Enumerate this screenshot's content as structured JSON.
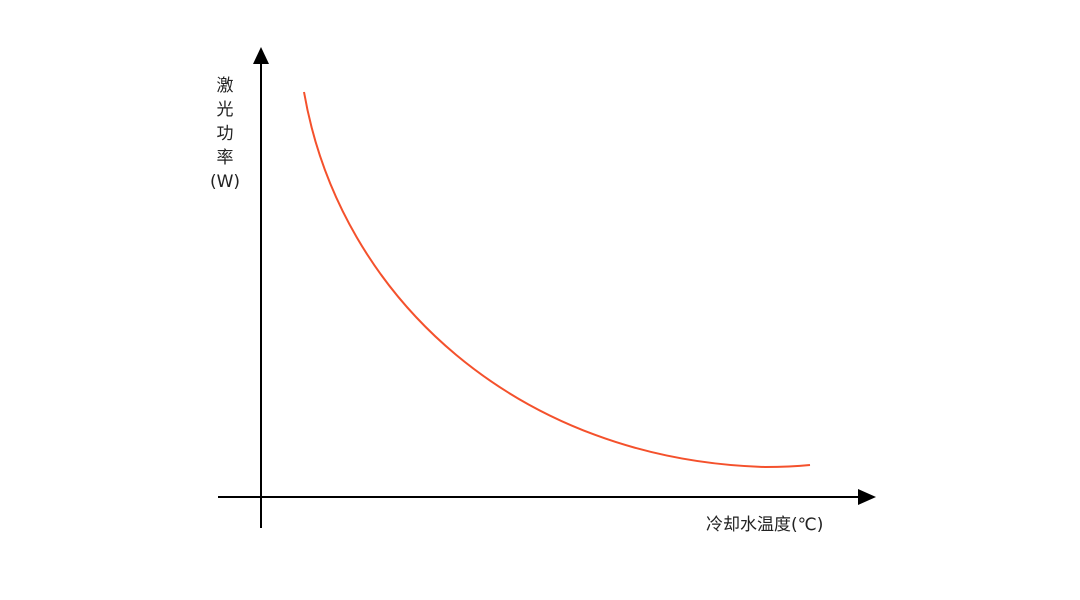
{
  "chart_data": {
    "type": "line",
    "title": "",
    "xlabel": "冷却水温度(℃)",
    "ylabel_chars": [
      "激",
      "光",
      "功",
      "率",
      "(W)"
    ],
    "trend": "decreasing, convex, levelling off at high temperature",
    "grid": false,
    "ticks": false,
    "series_color": "#f4512c",
    "axis_color": "#000000"
  }
}
